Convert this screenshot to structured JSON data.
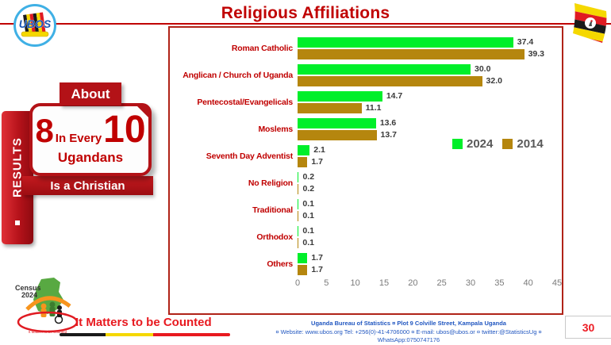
{
  "header": {
    "title": "Religious Affiliations"
  },
  "logos": {
    "ubos_text": "UBOS"
  },
  "sidebar": {
    "label": "RESULTS"
  },
  "infographic": {
    "tab_label": "About",
    "number_left": "8",
    "middle_text": "In Every",
    "number_right": "10",
    "subject": "Ugandans",
    "banner": "Is a Christian"
  },
  "chart_data": {
    "type": "bar",
    "orientation": "horizontal",
    "title": "Religious Affiliations",
    "categories": [
      "Roman Catholic",
      "Anglican / Church of Uganda",
      "Pentecostal/Evangelicals",
      "Moslems",
      "Seventh Day Adventist",
      "No Religion",
      "Traditional",
      "Orthodox",
      "Others"
    ],
    "series": [
      {
        "name": "2024",
        "color": "#00ef2a",
        "values": [
          37.4,
          30.0,
          14.7,
          13.6,
          2.1,
          0.2,
          0.1,
          0.1,
          1.7
        ]
      },
      {
        "name": "2014",
        "color": "#b5860e",
        "values": [
          39.3,
          32.0,
          11.1,
          13.7,
          1.7,
          0.2,
          0.1,
          0.1,
          1.7
        ]
      }
    ],
    "xlim": [
      0,
      45
    ],
    "xticks": [
      0,
      5,
      10,
      15,
      20,
      25,
      30,
      35,
      40,
      45
    ],
    "grid": false,
    "legend_position": "center-right",
    "value_labels": true
  },
  "footer": {
    "census_logo": {
      "line1": "Census",
      "line2": "2024",
      "tagline": "It Matters to be Counted"
    },
    "slogan": "It Matters to be Counted",
    "address_line1": "Uganda Bureau of Statistics ¤ Plot 9 Colville Street, Kampala Uganda",
    "address_line2": "¤ Website: www.ubos.org Tel: +256(0)-41-4706000 ¤ E-mail: ubos@ubos.or ¤ twitter:@StatisticsUg ¤ WhatsApp:0750747176",
    "page_number": "30"
  },
  "colors": {
    "accent_red": "#c00000",
    "panel_border": "#b02318",
    "infographic_red": "#b31217",
    "bar_2024": "#00ef2a",
    "bar_2014": "#b5860e",
    "footer_blue": "#2056c0",
    "bright_red": "#ed1c24",
    "legend_text": "#595959"
  }
}
